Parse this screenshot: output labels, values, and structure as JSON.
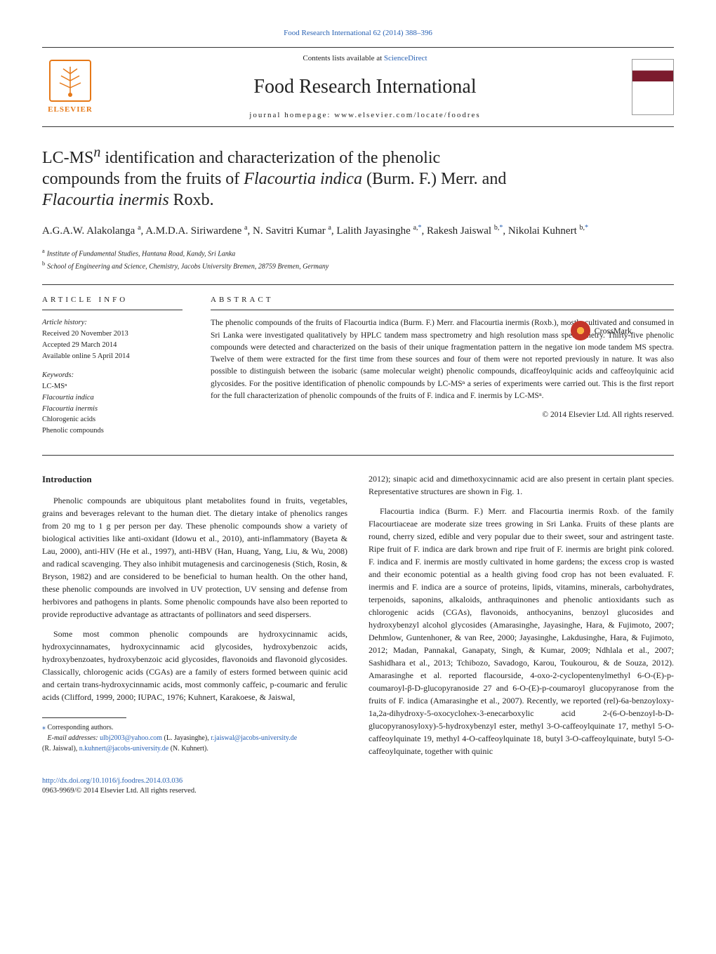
{
  "top_citation": "Food Research International 62 (2014) 388–396",
  "header": {
    "contents_prefix": "Contents lists available at ",
    "contents_link": "ScienceDirect",
    "journal_title": "Food Research International",
    "homepage_prefix": "journal homepage: ",
    "homepage_url": "www.elsevier.com/locate/foodres",
    "publisher": "ELSEVIER"
  },
  "crossmark_label": "CrossMark",
  "title_parts": {
    "pre": "LC-MS",
    "sup": "n",
    "post": " identification and characterization of the phenolic compounds from the fruits of ",
    "italic1": "Flacourtia indica",
    "mid": " (Burm. F.) Merr. and ",
    "italic2": "Flacourtia inermis",
    "end": " Roxb."
  },
  "authors_html": "A.G.A.W. Alakolanga <sup>a</sup>, A.M.D.A. Siriwardene <sup>a</sup>, N. Savitri Kumar <sup>a</sup>, Lalith Jayasinghe <sup>a,</sup><sup class=\"star\">*</sup>, Rakesh Jaiswal <sup>b,</sup><sup class=\"star\">*</sup>, Nikolai Kuhnert <sup>b,</sup><sup class=\"star\">*</sup>",
  "affiliations": {
    "a": "Institute of Fundamental Studies, Hantana Road, Kandy, Sri Lanka",
    "b": "School of Engineering and Science, Chemistry, Jacobs University Bremen, 28759 Bremen, Germany"
  },
  "info": {
    "label": "article info",
    "history_label": "Article history:",
    "received": "Received 20 November 2013",
    "accepted": "Accepted 29 March 2014",
    "online": "Available online 5 April 2014",
    "keywords_label": "Keywords:",
    "keywords": [
      "LC-MSⁿ",
      "Flacourtia indica",
      "Flacourtia inermis",
      "Chlorogenic acids",
      "Phenolic compounds"
    ]
  },
  "abstract": {
    "label": "abstract",
    "text": "The phenolic compounds of the fruits of Flacourtia indica (Burm. F.) Merr. and Flacourtia inermis (Roxb.), mostly cultivated and consumed in Sri Lanka were investigated qualitatively by HPLC tandem mass spectrometry and high resolution mass spectrometry. Thirty-five phenolic compounds were detected and characterized on the basis of their unique fragmentation pattern in the negative ion mode tandem MS spectra. Twelve of them were extracted for the first time from these sources and four of them were not reported previously in nature. It was also possible to distinguish between the isobaric (same molecular weight) phenolic compounds, dicaffeoylquinic acids and caffeoylquinic acid glycosides. For the positive identification of phenolic compounds by LC-MSⁿ a series of experiments were carried out. This is the first report for the full characterization of phenolic compounds of the fruits of F. indica and F. inermis by LC-MSⁿ.",
    "copyright": "© 2014 Elsevier Ltd. All rights reserved."
  },
  "body": {
    "heading": "Introduction",
    "p1": "Phenolic compounds are ubiquitous plant metabolites found in fruits, vegetables, grains and beverages relevant to the human diet. The dietary intake of phenolics ranges from 20 mg to 1 g per person per day. These phenolic compounds show a variety of biological activities like anti-oxidant (Idowu et al., 2010), anti-inflammatory (Bayeta & Lau, 2000), anti-HIV (He et al., 1997), anti-HBV (Han, Huang, Yang, Liu, & Wu, 2008) and radical scavenging. They also inhibit mutagenesis and carcinogenesis (Stich, Rosin, & Bryson, 1982) and are considered to be beneficial to human health. On the other hand, these phenolic compounds are involved in UV protection, UV sensing and defense from herbivores and pathogens in plants. Some phenolic compounds have also been reported to provide reproductive advantage as attractants of pollinators and seed dispersers.",
    "p2": "Some most common phenolic compounds are hydroxycinnamic acids, hydroxycinnamates, hydroxycinnamic acid glycosides, hydroxybenzoic acids, hydroxybenzoates, hydroxybenzoic acid glycosides, flavonoids and flavonoid glycosides. Classically, chlorogenic acids (CGAs) are a family of esters formed between quinic acid and certain trans-hydroxycinnamic acids, most commonly caffeic, p-coumaric and ferulic acids (Clifford, 1999, 2000; IUPAC, 1976; Kuhnert, Karakoese, & Jaiswal,",
    "p3": "2012); sinapic acid and dimethoxycinnamic acid are also present in certain plant species. Representative structures are shown in Fig. 1.",
    "p4": "Flacourtia indica (Burm. F.) Merr. and Flacourtia inermis Roxb. of the family Flacourtiaceae are moderate size trees growing in Sri Lanka. Fruits of these plants are round, cherry sized, edible and very popular due to their sweet, sour and astringent taste. Ripe fruit of F. indica are dark brown and ripe fruit of F. inermis are bright pink colored. F. indica and F. inermis are mostly cultivated in home gardens; the excess crop is wasted and their economic potential as a health giving food crop has not been evaluated. F. inermis and F. indica are a source of proteins, lipids, vitamins, minerals, carbohydrates, terpenoids, saponins, alkaloids, anthraquinones and phenolic antioxidants such as chlorogenic acids (CGAs), flavonoids, anthocyanins, benzoyl glucosides and hydroxybenzyl alcohol glycosides (Amarasinghe, Jayasinghe, Hara, & Fujimoto, 2007; Dehmlow, Guntenhoner, & van Ree, 2000; Jayasinghe, Lakdusinghe, Hara, & Fujimoto, 2012; Madan, Pannakal, Ganapaty, Singh, & Kumar, 2009; Ndhlala et al., 2007; Sashidhara et al., 2013; Tchibozo, Savadogo, Karou, Toukourou, & de Souza, 2012). Amarasinghe et al. reported flacourside, 4-oxo-2-cyclopentenylmethyl 6-O-(E)-p-coumaroyl-β-D-glucopyranoside 27 and 6-O-(E)-p-coumaroyl glucopyranose from the fruits of F. indica (Amarasinghe et al., 2007). Recently, we reported (rel)-6a-benzoyloxy-1a,2a-dihydroxy-5-oxocyclohex-3-enecarboxylic acid 2-(6-O-benzoyl-b-D-glucopyranosyloxy)-5-hydroxybenzyl ester, methyl 3-O-caffeoylquinate 17, methyl 5-O-caffeoylquinate 19, methyl 4-O-caffeoylquinate 18, butyl 3-O-caffeoylquinate, butyl 5-O-caffeoylquinate, together with quinic"
  },
  "footnotes": {
    "corresponding": "Corresponding authors.",
    "emails_label": "E-mail addresses: ",
    "email1": "ulbj2003@yahoo.com",
    "name1": " (L. Jayasinghe), ",
    "email2": "r.jaiswal@jacobs-university.de",
    "name2": " (R. Jaiswal), ",
    "email3": "n.kuhnert@jacobs-university.de",
    "name3": " (N. Kuhnert)."
  },
  "bottom": {
    "doi": "http://dx.doi.org/10.1016/j.foodres.2014.03.036",
    "issn_copy": "0963-9969/© 2014 Elsevier Ltd. All rights reserved."
  }
}
